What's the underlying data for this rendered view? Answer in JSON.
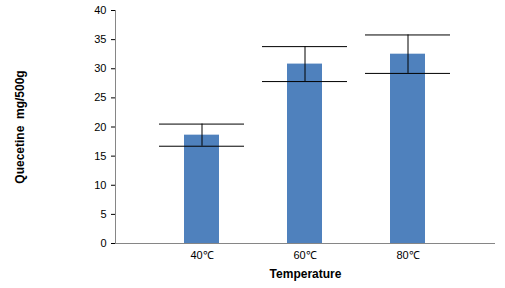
{
  "chart_data": {
    "type": "bar",
    "categories": [
      "40℃",
      "60℃",
      "80℃"
    ],
    "values": [
      18.6,
      30.8,
      32.5
    ],
    "errors": [
      1.9,
      3.0,
      3.3
    ],
    "color": "#4f81bd",
    "x_label": "Temperature",
    "y_label": "Quecetine  mg/500g",
    "ylim": [
      0,
      40
    ],
    "yticks": [
      0,
      5,
      10,
      15,
      20,
      25,
      30,
      35,
      40
    ],
    "grid": false
  }
}
